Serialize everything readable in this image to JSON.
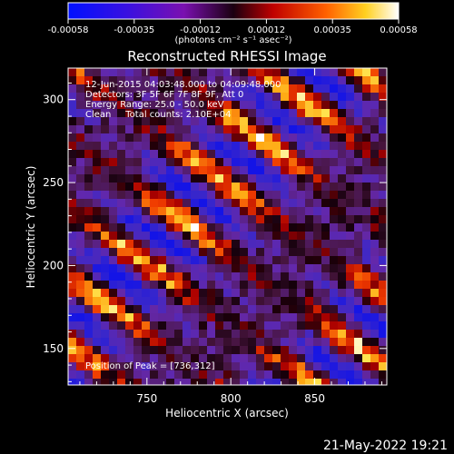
{
  "chart_data": {
    "type": "heatmap",
    "title": "Reconstructed RHESSI Image",
    "xlabel": "Heliocentric X (arcsec)",
    "ylabel": "Heliocentric Y (arcsec)",
    "xlim": [
      703,
      893
    ],
    "ylim": [
      128,
      319
    ],
    "xticks": [
      750,
      800,
      850
    ],
    "yticks": [
      150,
      200,
      250,
      300
    ],
    "colorbar": {
      "ticks": [
        "-0.00058",
        "-0.00035",
        "-0.00012",
        "0.00012",
        "0.00035",
        "0.00058"
      ],
      "range": [
        -0.00058,
        0.00058
      ],
      "unit_label": "(photons cm⁻² s⁻¹ asec⁻²)"
    },
    "info_lines": [
      "12-Jun-2015 04:03:48.000 to 04:09:48.000",
      "Detectors: 3F 5F 6F 7F 8F 9F, Att 0",
      "Energy Range: 25.0 - 50.0 keV",
      "Clean     Total counts: 2.10E+04"
    ],
    "peak_label": "Position of Peak = [736,312]",
    "peak_position": [
      736,
      312
    ],
    "stripes_note": "diagonal bright ridges running from upper-left to lower-right on a purple/blue background"
  },
  "footer": {
    "timestamp": "21-May-2022 19:21"
  }
}
